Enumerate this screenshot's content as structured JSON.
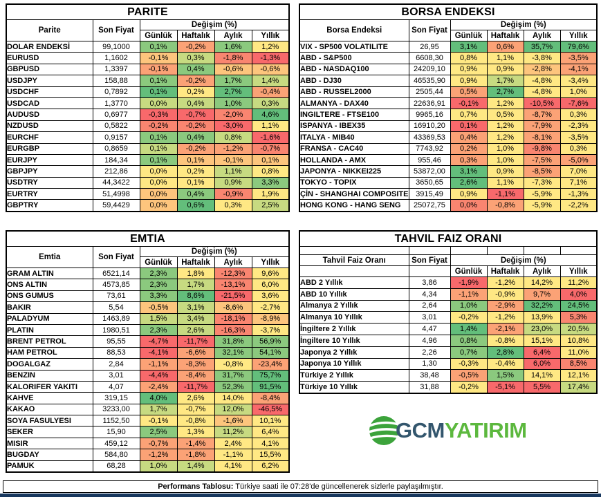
{
  "palette": {
    "g": "#63BE7B",
    "g2": "#8BC97E",
    "yg": "#C7DA81",
    "y": "#FFE884",
    "yo": "#FDC57D",
    "o": "#FBA276",
    "or": "#F98570",
    "r": "#F8696B"
  },
  "chart_data": [
    {
      "type": "table",
      "title": "PARITE",
      "name_label": "Parite",
      "price_label": "Son Fiyat",
      "change_label": "Değişim (%)",
      "periods": [
        "Günlük",
        "Haftalık",
        "Aylık",
        "Yıllık"
      ],
      "rows": [
        {
          "name": "DOLAR ENDEKSİ",
          "price": "99,1000",
          "changes": [
            "0,1%",
            "-0,2%",
            "1,6%",
            "1,2%"
          ],
          "colors": [
            "g2",
            "o",
            "g2",
            "y"
          ]
        },
        {
          "name": "EURUSD",
          "price": "1,1602",
          "changes": [
            "-0,1%",
            "0,3%",
            "-1,8%",
            "-1,3%"
          ],
          "colors": [
            "yo",
            "yg",
            "or",
            "r"
          ]
        },
        {
          "name": "GBPUSD",
          "price": "1,3397",
          "changes": [
            "-0,1%",
            "0,4%",
            "-0,6%",
            "-0,6%"
          ],
          "colors": [
            "o",
            "g2",
            "yo",
            "yo"
          ]
        },
        {
          "name": "USDJPY",
          "price": "158,88",
          "changes": [
            "0,1%",
            "-0,2%",
            "1,7%",
            "1,4%"
          ],
          "colors": [
            "g2",
            "o",
            "g2",
            "yg"
          ]
        },
        {
          "name": "USDCHF",
          "price": "0,7892",
          "changes": [
            "0,1%",
            "0,2%",
            "2,7%",
            "-0,4%"
          ],
          "colors": [
            "g",
            "y",
            "g",
            "o"
          ]
        },
        {
          "name": "USDCAD",
          "price": "1,3770",
          "changes": [
            "0,0%",
            "0,4%",
            "1,0%",
            "0,3%"
          ],
          "colors": [
            "yg",
            "yg",
            "g2",
            "yg"
          ]
        },
        {
          "name": "AUDUSD",
          "price": "0,6977",
          "changes": [
            "-0,3%",
            "-0,7%",
            "-2,0%",
            "4,6%"
          ],
          "colors": [
            "r",
            "r",
            "or",
            "g"
          ]
        },
        {
          "name": "NZDUSD",
          "price": "0,5822",
          "changes": [
            "-0,2%",
            "-0,2%",
            "-3,0%",
            "1,1%"
          ],
          "colors": [
            "or",
            "or",
            "r",
            "y"
          ]
        },
        {
          "name": "EURCHF",
          "price": "0,9157",
          "changes": [
            "0,1%",
            "0,4%",
            "0,8%",
            "-1,6%"
          ],
          "colors": [
            "g2",
            "g2",
            "yg",
            "r"
          ]
        },
        {
          "name": "EURGBP",
          "price": "0,8659",
          "changes": [
            "0,1%",
            "-0,2%",
            "-1,2%",
            "-0,7%"
          ],
          "colors": [
            "yg",
            "o",
            "o",
            "or"
          ]
        },
        {
          "name": "EURJPY",
          "price": "184,34",
          "changes": [
            "0,1%",
            "0,1%",
            "-0,1%",
            "0,1%"
          ],
          "colors": [
            "g2",
            "yo",
            "yo",
            "yo"
          ]
        },
        {
          "name": "GBPJPY",
          "price": "212,86",
          "changes": [
            "0,0%",
            "0,2%",
            "1,1%",
            "0,8%"
          ],
          "colors": [
            "y",
            "y",
            "yg",
            "y"
          ]
        },
        {
          "name": "USDTRY",
          "price": "44,3422",
          "changes": [
            "0,0%",
            "0,1%",
            "0,9%",
            "3,3%"
          ],
          "colors": [
            "y",
            "y",
            "yg",
            "g2"
          ]
        },
        {
          "name": "EURTRY",
          "price": "51,4998",
          "changes": [
            "0,0%",
            "0,4%",
            "-0,9%",
            "1,9%"
          ],
          "colors": [
            "yo",
            "g2",
            "or",
            "y"
          ]
        },
        {
          "name": "GBPTRY",
          "price": "59,4429",
          "changes": [
            "0,0%",
            "0,6%",
            "0,3%",
            "2,5%"
          ],
          "colors": [
            "yo",
            "g",
            "y",
            "yg"
          ]
        }
      ]
    },
    {
      "type": "table",
      "title": "BORSA ENDEKSI",
      "name_label": "Borsa Endeksi",
      "price_label": "Son Fiyat",
      "change_label": "Değişim (%)",
      "periods": [
        "Günlük",
        "Haftalık",
        "Aylık",
        "Yıllık"
      ],
      "rows": [
        {
          "name": "VIX - SP500 VOLATILITE",
          "price": "26,95",
          "changes": [
            "3,1%",
            "0,6%",
            "35,7%",
            "79,6%"
          ],
          "colors": [
            "g",
            "o",
            "g",
            "g"
          ]
        },
        {
          "name": "ABD - S&P500",
          "price": "6608,30",
          "changes": [
            "0,8%",
            "1,1%",
            "-3,8%",
            "-3,5%"
          ],
          "colors": [
            "y",
            "y",
            "y",
            "o"
          ]
        },
        {
          "name": "ABD - NASDAQ100",
          "price": "24209,10",
          "changes": [
            "0,9%",
            "0,9%",
            "-2,8%",
            "-4,1%"
          ],
          "colors": [
            "y",
            "y",
            "yo",
            "o"
          ]
        },
        {
          "name": "ABD - DJ30",
          "price": "46535,90",
          "changes": [
            "0,9%",
            "1,7%",
            "-4,8%",
            "-3,4%"
          ],
          "colors": [
            "y",
            "yg",
            "y",
            "y"
          ]
        },
        {
          "name": "ABD - RUSSEL2000",
          "price": "2505,44",
          "changes": [
            "0,5%",
            "2,7%",
            "-4,8%",
            "1,0%"
          ],
          "colors": [
            "o",
            "g",
            "y",
            "y"
          ]
        },
        {
          "name": "ALMANYA - DAX40",
          "price": "22636,91",
          "changes": [
            "-0,1%",
            "1,2%",
            "-10,5%",
            "-7,6%"
          ],
          "colors": [
            "r",
            "y",
            "r",
            "r"
          ]
        },
        {
          "name": "INGILTERE - FTSE100",
          "price": "9965,16",
          "changes": [
            "0,7%",
            "0,5%",
            "-8,7%",
            "0,3%"
          ],
          "colors": [
            "y",
            "y",
            "o",
            "y"
          ]
        },
        {
          "name": "ISPANYA - IBEX35",
          "price": "16910,20",
          "changes": [
            "0,1%",
            "1,2%",
            "-7,9%",
            "-2,3%"
          ],
          "colors": [
            "r",
            "y",
            "o",
            "y"
          ]
        },
        {
          "name": "ITALYA - MIB40",
          "price": "43369,53",
          "changes": [
            "0,4%",
            "1,2%",
            "-8,1%",
            "-3,5%"
          ],
          "colors": [
            "o",
            "y",
            "o",
            "y"
          ]
        },
        {
          "name": "FRANSA - CAC40",
          "price": "7743,92",
          "changes": [
            "0,2%",
            "1,0%",
            "-9,8%",
            "0,3%"
          ],
          "colors": [
            "o",
            "y",
            "or",
            "y"
          ]
        },
        {
          "name": "HOLLANDA - AMX",
          "price": "955,46",
          "changes": [
            "0,3%",
            "1,0%",
            "-7,5%",
            "-5,0%"
          ],
          "colors": [
            "o",
            "y",
            "o",
            "o"
          ]
        },
        {
          "name": "JAPONYA - NIKKEI225",
          "price": "53872,00",
          "changes": [
            "3,1%",
            "0,9%",
            "-8,5%",
            "7,0%"
          ],
          "colors": [
            "g",
            "y",
            "o",
            "y"
          ]
        },
        {
          "name": "TOKYO - TOPIX",
          "price": "3650,65",
          "changes": [
            "2,6%",
            "1,1%",
            "-7,3%",
            "7,1%"
          ],
          "colors": [
            "g",
            "y",
            "y",
            "y"
          ]
        },
        {
          "name": "ÇİN - SHANGHAI COMPOSITE",
          "price": "3915,49",
          "changes": [
            "0,9%",
            "-1,1%",
            "-5,9%",
            "-1,3%"
          ],
          "colors": [
            "y",
            "r",
            "y",
            "y"
          ]
        },
        {
          "name": "HONG KONG - HANG SENG",
          "price": "25072,75",
          "changes": [
            "0,0%",
            "-0,8%",
            "-5,9%",
            "-2,2%"
          ],
          "colors": [
            "or",
            "o",
            "y",
            "y"
          ]
        }
      ]
    },
    {
      "type": "table",
      "title": "EMTIA",
      "name_label": "Emtia",
      "price_label": "Son Fiyat",
      "change_label": "Değişim (%)",
      "periods": [
        "Günlük",
        "Haftalık",
        "Aylık",
        "Yıllık"
      ],
      "rows": [
        {
          "name": "GRAM ALTIN",
          "price": "6521,14",
          "changes": [
            "2,3%",
            "1,8%",
            "-12,3%",
            "9,6%"
          ],
          "colors": [
            "g2",
            "y",
            "or",
            "y"
          ]
        },
        {
          "name": "ONS ALTIN",
          "price": "4573,85",
          "changes": [
            "2,3%",
            "1,7%",
            "-13,1%",
            "6,0%"
          ],
          "colors": [
            "g2",
            "yg",
            "or",
            "y"
          ]
        },
        {
          "name": "ONS GUMUS",
          "price": "73,61",
          "changes": [
            "3,3%",
            "8,6%",
            "-21,5%",
            "3,6%"
          ],
          "colors": [
            "g2",
            "g",
            "r",
            "y"
          ]
        },
        {
          "name": "BAKIR",
          "price": "5,54",
          "changes": [
            "-0,5%",
            "3,1%",
            "-8,6%",
            "-2,7%"
          ],
          "colors": [
            "yo",
            "yg",
            "yo",
            "y"
          ]
        },
        {
          "name": "PALADYUM",
          "price": "1463,89",
          "changes": [
            "1,5%",
            "3,4%",
            "-18,1%",
            "-8,9%"
          ],
          "colors": [
            "yg",
            "yg",
            "or",
            "yo"
          ]
        },
        {
          "name": "PLATIN",
          "price": "1980,51",
          "changes": [
            "2,3%",
            "2,6%",
            "-16,3%",
            "-3,7%"
          ],
          "colors": [
            "g2",
            "yg",
            "or",
            "y"
          ]
        },
        {
          "name": "BRENT PETROL",
          "price": "95,55",
          "changes": [
            "-4,7%",
            "-11,7%",
            "31,8%",
            "56,9%"
          ],
          "colors": [
            "r",
            "r",
            "g2",
            "g2"
          ]
        },
        {
          "name": "HAM PETROL",
          "price": "88,53",
          "changes": [
            "-4,1%",
            "-6,6%",
            "32,1%",
            "54,1%"
          ],
          "colors": [
            "r",
            "o",
            "g2",
            "g2"
          ]
        },
        {
          "name": "DOGALGAZ",
          "price": "2,84",
          "changes": [
            "-1,1%",
            "-8,3%",
            "-0,8%",
            "-23,4%"
          ],
          "colors": [
            "o",
            "o",
            "y",
            "o"
          ]
        },
        {
          "name": "BENZIN",
          "price": "3,01",
          "changes": [
            "-4,4%",
            "-8,4%",
            "31,7%",
            "75,7%"
          ],
          "colors": [
            "r",
            "o",
            "g2",
            "g"
          ]
        },
        {
          "name": "KALORIFER YAKITI",
          "price": "4,07",
          "changes": [
            "-2,4%",
            "-11,7%",
            "52,3%",
            "91,5%"
          ],
          "colors": [
            "o",
            "r",
            "g2",
            "g"
          ]
        },
        {
          "name": "KAHVE",
          "price": "319,15",
          "changes": [
            "4,0%",
            "2,6%",
            "14,0%",
            "-8,4%"
          ],
          "colors": [
            "g",
            "y",
            "y",
            "o"
          ]
        },
        {
          "name": "KAKAO",
          "price": "3233,00",
          "changes": [
            "1,7%",
            "-0,7%",
            "12,0%",
            "-46,5%"
          ],
          "colors": [
            "yg",
            "y",
            "yg",
            "r"
          ]
        },
        {
          "name": "SOYA FASULYESI",
          "price": "1152,50",
          "changes": [
            "-0,1%",
            "-0,8%",
            "-1,6%",
            "10,1%"
          ],
          "colors": [
            "y",
            "y",
            "yo",
            "y"
          ]
        },
        {
          "name": "SEKER",
          "price": "15,90",
          "changes": [
            "2,5%",
            "1,3%",
            "11,2%",
            "6,4%"
          ],
          "colors": [
            "g2",
            "y",
            "yg",
            "y"
          ]
        },
        {
          "name": "MISIR",
          "price": "459,12",
          "changes": [
            "-0,7%",
            "-1,4%",
            "2,4%",
            "4,1%"
          ],
          "colors": [
            "o",
            "o",
            "y",
            "y"
          ]
        },
        {
          "name": "BUGDAY",
          "price": "584,80",
          "changes": [
            "-1,2%",
            "-1,8%",
            "-1,1%",
            "15,5%"
          ],
          "colors": [
            "o",
            "o",
            "y",
            "y"
          ]
        },
        {
          "name": "PAMUK",
          "price": "68,28",
          "changes": [
            "1,0%",
            "1,4%",
            "4,1%",
            "6,2%"
          ],
          "colors": [
            "yg",
            "yg",
            "y",
            "y"
          ]
        }
      ]
    },
    {
      "type": "table",
      "title": "TAHVIL FAIZ ORANI",
      "name_label": "Tahvil Faiz Oranı",
      "price_label": "Son Fiyat",
      "change_label": "Değişim (%)",
      "periods": [
        "Günlük",
        "Haftalık",
        "Aylık",
        "Yıllık"
      ],
      "rows": [
        {
          "name": "ABD 2 Yıllık",
          "price": "3,86",
          "changes": [
            "-1,9%",
            "-1,2%",
            "14,2%",
            "11,2%"
          ],
          "colors": [
            "r",
            "y",
            "y",
            "y"
          ]
        },
        {
          "name": "ABD 10 Yıllık",
          "price": "4,34",
          "changes": [
            "-1,1%",
            "-0,9%",
            "9,7%",
            "4,0%"
          ],
          "colors": [
            "o",
            "y",
            "o",
            "r"
          ]
        },
        {
          "name": "Almanya 2 Yıllık",
          "price": "2,64",
          "changes": [
            "1,0%",
            "-2,9%",
            "32,2%",
            "24,5%"
          ],
          "colors": [
            "g2",
            "o",
            "g",
            "g"
          ]
        },
        {
          "name": "Almanya 10 Yıllık",
          "price": "3,01",
          "changes": [
            "-0,2%",
            "-1,2%",
            "13,9%",
            "5,3%"
          ],
          "colors": [
            "y",
            "y",
            "y",
            "or"
          ]
        },
        {
          "name": "İngiltere 2 Yıllık",
          "price": "4,47",
          "changes": [
            "1,4%",
            "-2,1%",
            "23,0%",
            "20,5%"
          ],
          "colors": [
            "g",
            "o",
            "yg",
            "yg"
          ]
        },
        {
          "name": "İngiltere 10 Yıllık",
          "price": "4,96",
          "changes": [
            "0,8%",
            "-0,8%",
            "15,1%",
            "10,8%"
          ],
          "colors": [
            "g2",
            "y",
            "y",
            "y"
          ]
        },
        {
          "name": "Japonya 2 Yıllık",
          "price": "2,26",
          "changes": [
            "0,7%",
            "2,8%",
            "6,4%",
            "11,0%"
          ],
          "colors": [
            "g2",
            "g",
            "r",
            "y"
          ]
        },
        {
          "name": "Japonya 10 Yıllık",
          "price": "1,30",
          "changes": [
            "-0,3%",
            "-0,4%",
            "6,0%",
            "8,5%"
          ],
          "colors": [
            "y",
            "y",
            "r",
            "or"
          ]
        },
        {
          "name": "Türkiye 2 Yıllık",
          "price": "38,48",
          "changes": [
            "-0,5%",
            "1,5%",
            "14,1%",
            "12,1%"
          ],
          "colors": [
            "o",
            "g2",
            "y",
            "y"
          ]
        },
        {
          "name": "Türkiye 10 Yıllık",
          "price": "31,88",
          "changes": [
            "-0,2%",
            "-5,1%",
            "5,5%",
            "17,4%"
          ],
          "colors": [
            "y",
            "r",
            "r",
            "yg"
          ]
        }
      ]
    }
  ],
  "logo": {
    "gcm": "GCM",
    "yatirim": "YATIRIM",
    "gcm_color": "#33566D",
    "yatirim_color": "#5CB83E",
    "globe_color": "#3CA33B"
  },
  "footer": {
    "label_bold": "Performans Tablosu:",
    "label_rest": " Türkiye saati ile 07:28'de güncellenerek sizlerle paylaşılmıştır.",
    "bar_color": "#17375E"
  }
}
